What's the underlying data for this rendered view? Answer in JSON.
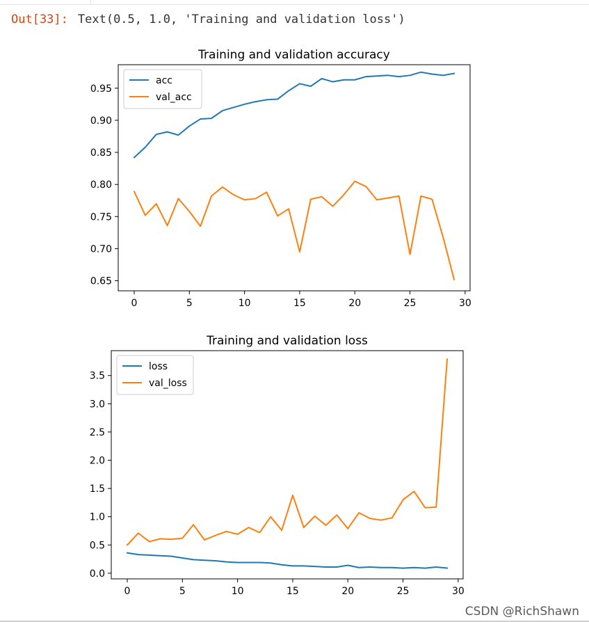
{
  "cell_output": {
    "prompt": "Out[33]:",
    "text": "Text(0.5, 1.0, 'Training and validation loss')"
  },
  "watermark": "CSDN @RichShawn",
  "colors": {
    "series_1": "#1f77b4",
    "series_2": "#ff7f0e",
    "axes": "#000000"
  },
  "chart_data": [
    {
      "type": "line",
      "title": "Training and validation accuracy",
      "xlabel": "",
      "ylabel": "",
      "xlim": [
        -1.45,
        30.45
      ],
      "ylim": [
        0.6343,
        0.9866
      ],
      "xticks": [
        0,
        5,
        10,
        15,
        20,
        25,
        30
      ],
      "yticks": [
        0.65,
        0.7,
        0.75,
        0.8,
        0.85,
        0.9,
        0.95
      ],
      "ytick_labels": [
        "0.65",
        "0.70",
        "0.75",
        "0.80",
        "0.85",
        "0.90",
        "0.95"
      ],
      "legend": "upper left",
      "x": [
        0,
        1,
        2,
        3,
        4,
        5,
        6,
        7,
        8,
        9,
        10,
        11,
        12,
        13,
        14,
        15,
        16,
        17,
        18,
        19,
        20,
        21,
        22,
        23,
        24,
        25,
        26,
        27,
        28,
        29
      ],
      "series": [
        {
          "name": "acc",
          "values": [
            0.842,
            0.858,
            0.878,
            0.882,
            0.877,
            0.891,
            0.902,
            0.903,
            0.915,
            0.92,
            0.925,
            0.929,
            0.932,
            0.933,
            0.946,
            0.957,
            0.953,
            0.965,
            0.96,
            0.963,
            0.963,
            0.968,
            0.969,
            0.97,
            0.968,
            0.97,
            0.975,
            0.972,
            0.97,
            0.973
          ]
        },
        {
          "name": "val_acc",
          "values": [
            0.789,
            0.752,
            0.77,
            0.736,
            0.778,
            0.758,
            0.735,
            0.782,
            0.796,
            0.784,
            0.776,
            0.778,
            0.788,
            0.751,
            0.762,
            0.695,
            0.777,
            0.781,
            0.766,
            0.784,
            0.805,
            0.797,
            0.776,
            0.779,
            0.782,
            0.691,
            0.782,
            0.777,
            0.718,
            0.652
          ]
        }
      ]
    },
    {
      "type": "line",
      "title": "Training and validation loss",
      "xlabel": "",
      "ylabel": "",
      "xlim": [
        -1.45,
        30.45
      ],
      "ylim": [
        -0.1,
        3.94
      ],
      "xticks": [
        0,
        5,
        10,
        15,
        20,
        25,
        30
      ],
      "yticks": [
        0.0,
        0.5,
        1.0,
        1.5,
        2.0,
        2.5,
        3.0,
        3.5
      ],
      "ytick_labels": [
        "0.0",
        "0.5",
        "1.0",
        "1.5",
        "2.0",
        "2.5",
        "3.0",
        "3.5"
      ],
      "legend": "upper left",
      "x": [
        0,
        1,
        2,
        3,
        4,
        5,
        6,
        7,
        8,
        9,
        10,
        11,
        12,
        13,
        14,
        15,
        16,
        17,
        18,
        19,
        20,
        21,
        22,
        23,
        24,
        25,
        26,
        27,
        28,
        29
      ],
      "series": [
        {
          "name": "loss",
          "values": [
            0.36,
            0.33,
            0.32,
            0.31,
            0.3,
            0.27,
            0.24,
            0.23,
            0.22,
            0.2,
            0.19,
            0.19,
            0.19,
            0.18,
            0.15,
            0.13,
            0.13,
            0.12,
            0.11,
            0.11,
            0.14,
            0.1,
            0.11,
            0.1,
            0.1,
            0.09,
            0.1,
            0.09,
            0.11,
            0.09
          ]
        },
        {
          "name": "val_loss",
          "values": [
            0.5,
            0.71,
            0.56,
            0.61,
            0.6,
            0.62,
            0.86,
            0.59,
            0.67,
            0.74,
            0.69,
            0.81,
            0.72,
            1.0,
            0.76,
            1.38,
            0.81,
            1.01,
            0.85,
            1.03,
            0.79,
            1.07,
            0.97,
            0.94,
            0.98,
            1.3,
            1.45,
            1.16,
            1.17,
            3.79
          ]
        }
      ]
    }
  ]
}
